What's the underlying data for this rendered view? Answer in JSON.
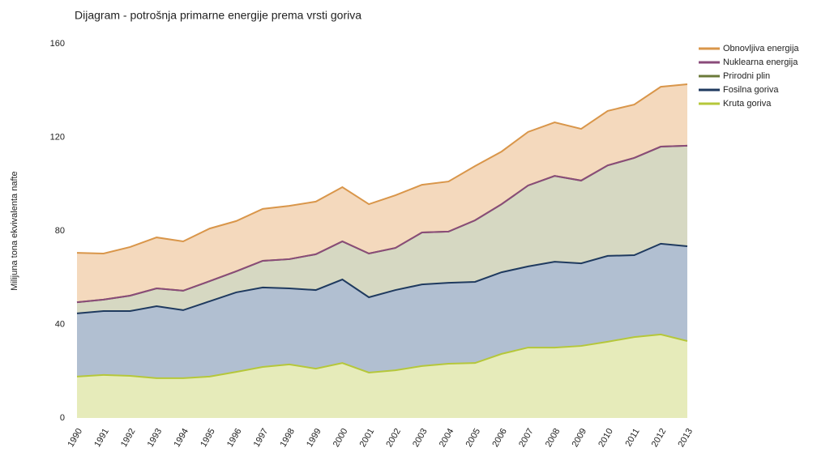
{
  "chart_data": {
    "type": "stacked_area",
    "title": "Dijagram - potrošnja primarne energije prema vrsti goriva",
    "y_label": "Milijuna tona ekvivalenta nafte",
    "categories": [
      "1990",
      "1991",
      "1992",
      "1993",
      "1994",
      "1995",
      "1996",
      "1997",
      "1998",
      "1999",
      "2000",
      "2001",
      "2002",
      "2003",
      "2004",
      "2005",
      "2006",
      "2007",
      "2008",
      "2009",
      "2010",
      "2011",
      "2012",
      "2013"
    ],
    "series": [
      {
        "name": "Kruta goriva",
        "color": "#b5c73a",
        "fill_color": "#e6ebba",
        "values": [
          17.7,
          18.4,
          18,
          17,
          17,
          17.7,
          19.7,
          21.8,
          22.9,
          21.1,
          23.5,
          19.4,
          20.4,
          22.2,
          23.2,
          23.5,
          27.4,
          30.1,
          30.1,
          30.8,
          32.6,
          34.6,
          35.7,
          32.9
        ]
      },
      {
        "name": "Fosilna goriva",
        "color": "#1f3a5f",
        "fill_color": "#b1bfd1",
        "values": [
          27,
          27.3,
          27.7,
          30.8,
          29.1,
          32.2,
          34,
          34,
          32.5,
          33.6,
          35.7,
          32.2,
          34.3,
          34.9,
          34.6,
          34.7,
          34.9,
          34.7,
          36.7,
          35.3,
          36.7,
          35,
          38.8,
          40.5
        ]
      },
      {
        "name": "Prirodni plin",
        "color": "#6b7a3a",
        "fill_color": "#d6d8c2",
        "values": [
          4.8,
          4.9,
          6.6,
          7.6,
          8.3,
          8.6,
          9,
          11.4,
          12.5,
          15.3,
          16.3,
          18.7,
          18,
          22.2,
          21.9,
          26.3,
          29.1,
          34.6,
          36.7,
          35.4,
          38.7,
          41.6,
          41.5,
          43
        ]
      },
      {
        "name": "Nuklearna energija",
        "color": "#8a4b7a",
        "fill_color": "#d9c3d3",
        "values": [
          0,
          0,
          0,
          0,
          0,
          0,
          0,
          0,
          0,
          0,
          0,
          0,
          0,
          0,
          0,
          0,
          0,
          0,
          0,
          0,
          0,
          0,
          0,
          0
        ]
      },
      {
        "name": "Obnovljiva energija",
        "color": "#d9964a",
        "fill_color": "#f4d9bd",
        "values": [
          21.1,
          19.7,
          20.8,
          21.8,
          21.1,
          22.5,
          21.5,
          22.2,
          22.8,
          22.5,
          23.2,
          21.1,
          22.5,
          20.4,
          21.4,
          23.2,
          22.5,
          22.9,
          22.9,
          22.1,
          23.3,
          22.8,
          25.6,
          26.3
        ]
      }
    ],
    "ylim": [
      0,
      160
    ],
    "yticks": [
      0,
      40,
      80,
      120,
      160
    ],
    "grid": false,
    "legend": "right"
  }
}
